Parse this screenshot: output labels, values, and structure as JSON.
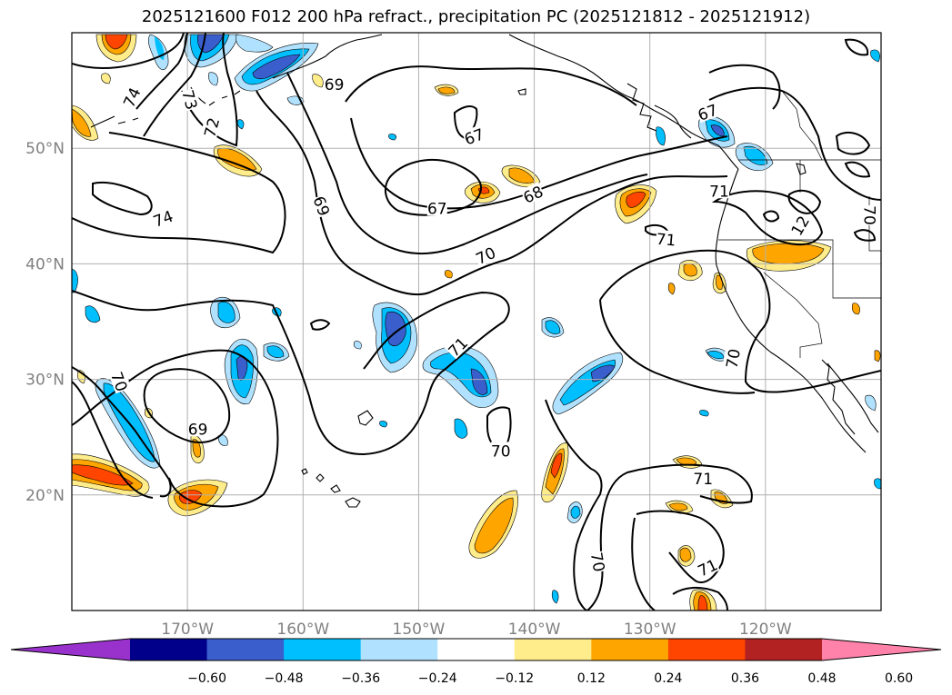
{
  "title": "2025121600 F012 200 hPa refract., precipitation PC (2025121812 - 2025121912)",
  "map": {
    "lon_range": [
      -180,
      -110
    ],
    "lat_range": [
      10,
      60
    ],
    "lat_ticks": [
      {
        "lat": 50,
        "label": "50°N"
      },
      {
        "lat": 40,
        "label": "40°N"
      },
      {
        "lat": 30,
        "label": "30°N"
      },
      {
        "lat": 20,
        "label": "20°N"
      }
    ],
    "lon_ticks": [
      {
        "lon": -170,
        "label": "170°W"
      },
      {
        "lon": -160,
        "label": "160°W"
      },
      {
        "lon": -150,
        "label": "150°W"
      },
      {
        "lon": -140,
        "label": "140°W"
      },
      {
        "lon": -130,
        "label": "130°W"
      },
      {
        "lon": -120,
        "label": "120°W"
      }
    ],
    "grid": true,
    "contour_labels": [
      {
        "text": "74",
        "lon": -174.8,
        "lat": 54.4,
        "rot": -65
      },
      {
        "text": "73",
        "lon": -169.8,
        "lat": 54.2,
        "rot": 75
      },
      {
        "text": "72",
        "lon": -167.9,
        "lat": 51.8,
        "rot": -75
      },
      {
        "text": "69",
        "lon": -157.3,
        "lat": 55.5,
        "rot": 0
      },
      {
        "text": "67",
        "lon": -145.2,
        "lat": 51.0,
        "rot": -20
      },
      {
        "text": "67",
        "lon": -125.0,
        "lat": 53.1,
        "rot": -20
      },
      {
        "text": "67",
        "lon": -148.4,
        "lat": 44.8,
        "rot": 0
      },
      {
        "text": "68",
        "lon": -140.1,
        "lat": 46.0,
        "rot": -25
      },
      {
        "text": "69",
        "lon": -158.4,
        "lat": 45.0,
        "rot": 70
      },
      {
        "text": "74",
        "lon": -172.1,
        "lat": 43.9,
        "rot": -20
      },
      {
        "text": "70",
        "lon": -144.2,
        "lat": 40.7,
        "rot": -25
      },
      {
        "text": "71",
        "lon": -128.6,
        "lat": 42.1,
        "rot": 5
      },
      {
        "text": "71",
        "lon": -124.0,
        "lat": 46.3,
        "rot": 0
      },
      {
        "text": "12",
        "lon": -117.0,
        "lat": 43.3,
        "rot": -60
      },
      {
        "text": "70",
        "lon": -111.0,
        "lat": 44.2,
        "rot": 90
      },
      {
        "text": "71",
        "lon": -146.6,
        "lat": 32.8,
        "rot": -45
      },
      {
        "text": "70",
        "lon": -122.8,
        "lat": 31.8,
        "rot": -80
      },
      {
        "text": "70",
        "lon": -175.9,
        "lat": 29.8,
        "rot": 70
      },
      {
        "text": "69",
        "lon": -169.1,
        "lat": 25.7,
        "rot": 0
      },
      {
        "text": "70",
        "lon": -142.9,
        "lat": 23.8,
        "rot": 0
      },
      {
        "text": "71",
        "lon": -125.4,
        "lat": 21.4,
        "rot": 0
      },
      {
        "text": "70",
        "lon": -134.5,
        "lat": 14.2,
        "rot": 80
      },
      {
        "text": "71",
        "lon": -125.0,
        "lat": 13.7,
        "rot": -25
      }
    ]
  },
  "colorbar": {
    "colors": [
      "#9932cc",
      "#00008b",
      "#3a5fcd",
      "#00bfff",
      "#b0e2ff",
      "#ffffff",
      "#ffec8b",
      "#ffa500",
      "#ff4500",
      "#b22222",
      "#ff82ab"
    ],
    "labels": [
      "−0.60",
      "−0.48",
      "−0.36",
      "−0.24",
      "−0.12",
      "0.12",
      "0.24",
      "0.36",
      "0.48",
      "0.60"
    ]
  },
  "colors": {
    "contour": "#000000",
    "coast": "#000000",
    "grid": "#b0b0b0"
  }
}
